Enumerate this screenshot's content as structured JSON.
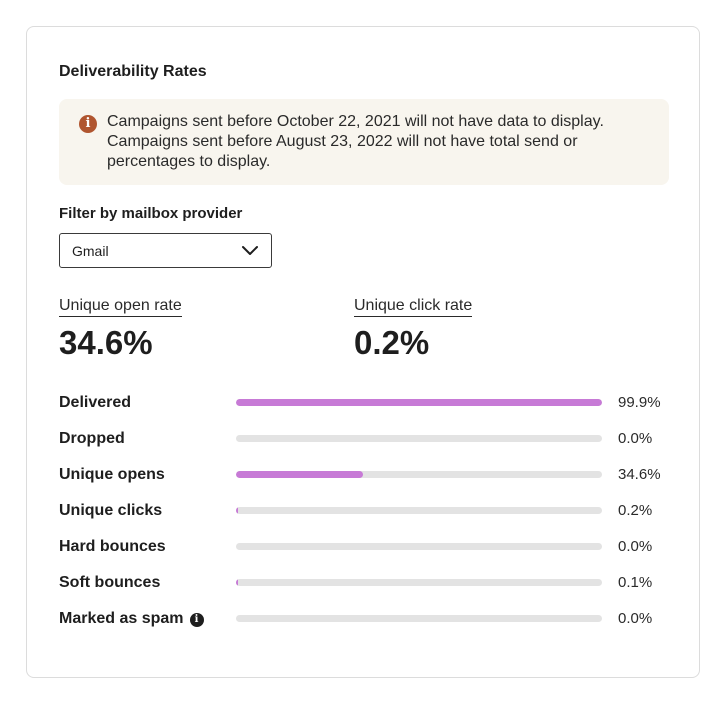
{
  "panel": {
    "title": "Deliverability Rates"
  },
  "notice": {
    "icon": "info-circle-icon",
    "icon_color": "#b0552f",
    "background": "#f8f5ee",
    "text": "Campaigns sent before October 22, 2021 will not have data to display.\nCampaigns sent before August 23, 2022 will not have total send or\npercentages to display."
  },
  "filter": {
    "label": "Filter by mailbox provider",
    "selected": "Gmail",
    "icon": "chevron-down-icon"
  },
  "metrics": {
    "open_rate": {
      "label": "Unique open rate",
      "value": "34.6%"
    },
    "click_rate": {
      "label": "Unique click rate",
      "value": "0.2%"
    }
  },
  "bar_color": "#c77ad6",
  "track_color": "#e3e3e3",
  "rates": [
    {
      "label": "Delivered",
      "value_text": "99.9%",
      "percent": 99.9
    },
    {
      "label": "Dropped",
      "value_text": "0.0%",
      "percent": 0.0
    },
    {
      "label": "Unique opens",
      "value_text": "34.6%",
      "percent": 34.6
    },
    {
      "label": "Unique clicks",
      "value_text": "0.2%",
      "percent": 0.2
    },
    {
      "label": "Hard bounces",
      "value_text": "0.0%",
      "percent": 0.0
    },
    {
      "label": "Soft bounces",
      "value_text": "0.1%",
      "percent": 0.1
    },
    {
      "label": "Marked as spam",
      "value_text": "0.0%",
      "percent": 0.0,
      "info_icon": "info-icon"
    }
  ]
}
